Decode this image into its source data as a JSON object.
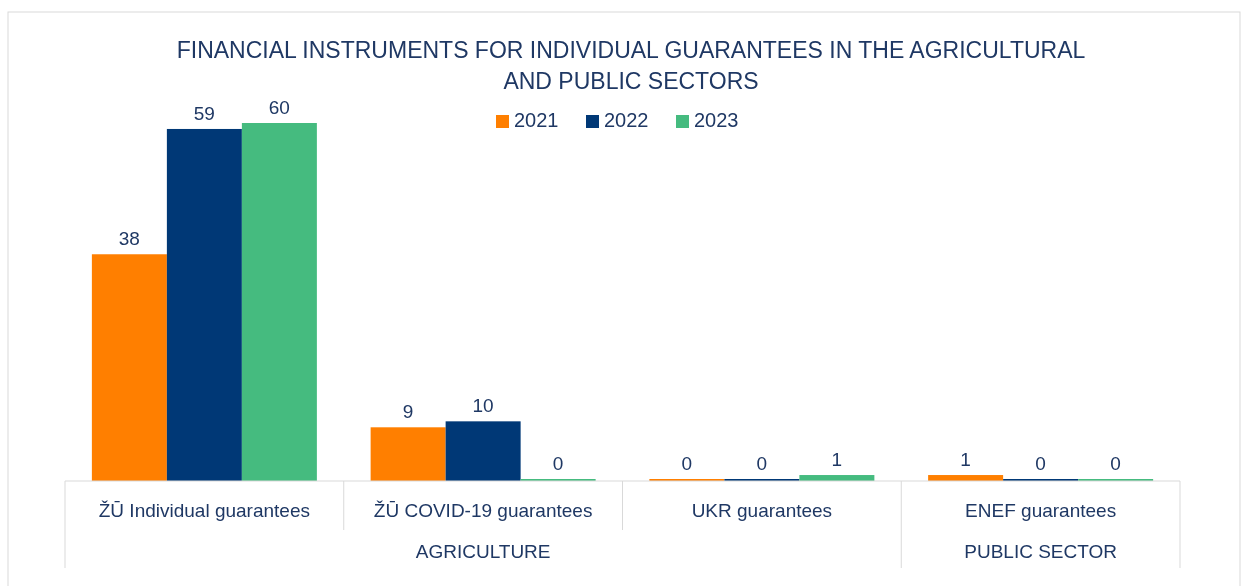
{
  "chart_data": {
    "type": "bar",
    "title": "FINANCIAL INSTRUMENTS FOR INDIVIDUAL GUARANTEES IN THE AGRICULTURAL\nAND PUBLIC SECTORS",
    "categories": [
      "ŽŪ Individual guarantees",
      "ŽŪ COVID-19 guarantees",
      "UKR guarantees",
      "ENEF guarantees"
    ],
    "series": [
      {
        "name": "2021",
        "color": "#ff7f00",
        "values": [
          38,
          9,
          0,
          1
        ]
      },
      {
        "name": "2022",
        "color": "#003876",
        "values": [
          59,
          10,
          0,
          0
        ]
      },
      {
        "name": "2023",
        "color": "#45bb7f",
        "values": [
          60,
          0,
          1,
          0
        ]
      }
    ],
    "data_labels": true,
    "legend": "top",
    "annotations": [
      "AGRICULTURE",
      "PUBLIC SECTOR"
    ]
  }
}
